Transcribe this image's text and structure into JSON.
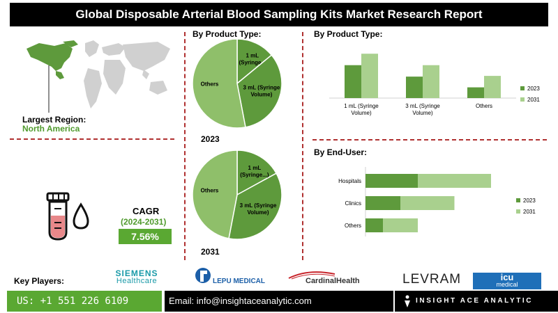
{
  "title": "Global Disposable Arterial Blood Sampling Kits Market  Research Report",
  "region": {
    "label": "Largest Region:",
    "value": "North America"
  },
  "cagr": {
    "label": "CAGR",
    "period": "(2024-2031)",
    "value": "7.56%"
  },
  "key_players": {
    "label": "Key Players:",
    "logos": [
      "SIEMENS",
      "Healthcare",
      "LEPU MEDICAL",
      "CardinalHealth",
      "LEVRAM",
      "icu",
      "medical"
    ]
  },
  "footer": {
    "phone": "US: +1 551 226 6109",
    "email": "Email: info@insightaceanalytic.com",
    "brand": "INSIGHT ACE ANALYTIC"
  },
  "colors": {
    "dark_green": "#5e9a3c",
    "light_green": "#a9d08e",
    "pie_light": "#8fbf6a",
    "accent": "#5aa832"
  },
  "chart_data": [
    {
      "type": "pie",
      "title": "By Product Type:",
      "caption": "2023",
      "labels": [
        "1 mL (Syringe...",
        "3 mL (Syringe Volume)",
        "Others"
      ],
      "values": [
        14,
        33,
        53
      ]
    },
    {
      "type": "pie",
      "caption": "2031",
      "labels": [
        "1 mL (Syringe...)",
        "3 mL (Syringe Volume)",
        "Others"
      ],
      "values": [
        17,
        36,
        47
      ]
    },
    {
      "type": "bar",
      "title": "By  Product Type:",
      "categories": [
        "1 mL (Syringe Volume)",
        "3 mL (Syringe Volume)",
        "Others"
      ],
      "series": [
        {
          "name": "2023",
          "values": [
            46,
            30,
            15
          ]
        },
        {
          "name": "2031",
          "values": [
            62,
            46,
            31
          ]
        }
      ],
      "ylim": [
        0,
        70
      ],
      "legend": "right"
    },
    {
      "type": "bar",
      "orientation": "horizontal",
      "title": "By End-User:",
      "categories": [
        "Hospitals",
        "Clinics",
        "Others"
      ],
      "series": [
        {
          "name": "2023",
          "values": [
            30,
            20,
            10
          ]
        },
        {
          "name": "2031",
          "values": [
            42,
            31,
            20
          ]
        }
      ],
      "stacked": true,
      "xlim": [
        0,
        80
      ],
      "legend": "right"
    }
  ]
}
